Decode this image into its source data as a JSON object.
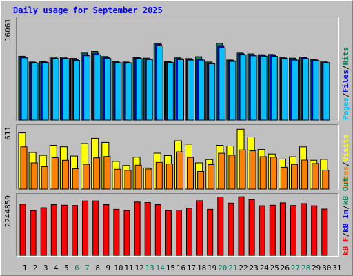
{
  "chart_data": {
    "type": "bar",
    "title": "Daily usage for September 2025",
    "colors": {
      "background": "#c0c0c0",
      "title": "#0000ff",
      "hits": "#00805c",
      "files": "#0000ff",
      "pages": "#00c0ff",
      "visits": "#ffff00",
      "sites": "#ff8000",
      "kbf": "#ff0000",
      "kbin": "#0000ff",
      "kbout": "#00805c",
      "weekend_label": "#00805c",
      "weekday_label": "#000080"
    },
    "categories": [
      "1",
      "2",
      "3",
      "4",
      "5",
      "6",
      "7",
      "8",
      "9",
      "10",
      "11",
      "12",
      "13",
      "14",
      "15",
      "16",
      "17",
      "18",
      "19",
      "20",
      "21",
      "22",
      "23",
      "24",
      "25",
      "26",
      "27",
      "28",
      "29",
      "30",
      "31"
    ],
    "weekend_days": [
      "6",
      "7",
      "13",
      "14",
      "20",
      "21",
      "27",
      "28"
    ],
    "panels": [
      {
        "id": "hits",
        "max_label": "16061",
        "ylim": [
          0,
          16061
        ],
        "legend": [
          {
            "text": "Pages",
            "color": "#00c0ff"
          },
          {
            "text": "Files",
            "color": "#0000ff"
          },
          {
            "text": "Hits",
            "color": "#00805c"
          }
        ],
        "series": [
          {
            "name": "Hits",
            "values": [
              10260,
              9320,
              9400,
              10140,
              10140,
              9900,
              10760,
              11020,
              10210,
              9400,
              9320,
              10070,
              9950,
              12330,
              9400,
              9990,
              9870,
              10180,
              9320,
              12330,
              9650,
              10750,
              10620,
              10500,
              10530,
              10140,
              9950,
              10140,
              9780,
              9470,
              null
            ]
          },
          {
            "name": "Files",
            "values": [
              10150,
              9240,
              9320,
              9950,
              9950,
              9680,
              10490,
              10700,
              10020,
              9280,
              9240,
              9990,
              9790,
              12170,
              9320,
              9870,
              9710,
              9790,
              9150,
              11940,
              9550,
              10610,
              10460,
              10400,
              10400,
              9990,
              9780,
              10020,
              9650,
              9280,
              null
            ]
          },
          {
            "name": "Pages",
            "values": [
              9990,
              9160,
              9240,
              9870,
              9870,
              9560,
              10330,
              10460,
              9870,
              9200,
              9160,
              9870,
              9710,
              11920,
              9240,
              9710,
              9630,
              9630,
              9040,
              11600,
              9400,
              10460,
              10310,
              10260,
              10250,
              9870,
              9630,
              9870,
              9550,
              9200,
              null
            ]
          }
        ]
      },
      {
        "id": "visits",
        "max_label": "611",
        "ylim": [
          0,
          611
        ],
        "legend": [
          {
            "text": "Sites",
            "color": "#ff8000"
          },
          {
            "text": "Visits",
            "color": "#ffff00"
          }
        ],
        "series": [
          {
            "name": "Visits",
            "values": [
              559,
              364,
              336,
              436,
              421,
              329,
              453,
              505,
              464,
              275,
              235,
              317,
              210,
              357,
              333,
              480,
              447,
              261,
              294,
              436,
              429,
              595,
              518,
              394,
              349,
              299,
              322,
              420,
              287,
              296,
              null
            ]
          },
          {
            "name": "Sites",
            "values": [
              420,
              261,
              223,
              313,
              286,
              203,
              247,
              311,
              325,
              197,
              186,
              238,
              200,
              265,
              250,
              370,
              315,
              175,
              244,
              356,
              337,
              390,
              380,
              323,
              317,
              217,
              246,
              288,
              254,
              188,
              null
            ]
          }
        ]
      },
      {
        "id": "kbytes",
        "max_label": "2244859",
        "ylim": [
          0,
          2244859
        ],
        "legend": [
          {
            "text": "kB F",
            "color": "#ff0000"
          },
          {
            "text": "kB In",
            "color": "#0000ff"
          },
          {
            "text": "kB Out",
            "color": "#00805c"
          }
        ],
        "series": [
          {
            "name": "kB F",
            "values": [
              1960000,
              1710000,
              1820000,
              1940000,
              1920000,
              1910000,
              2080000,
              2080000,
              1940000,
              1760000,
              1710000,
              2040000,
              2020000,
              1940000,
              1710000,
              1730000,
              1800000,
              2090000,
              1760000,
              2230000,
              2000000,
              2240000,
              2130000,
              1900000,
              1920000,
              2010000,
              1910000,
              1980000,
              1900000,
              1770000,
              null
            ]
          }
        ]
      }
    ]
  }
}
